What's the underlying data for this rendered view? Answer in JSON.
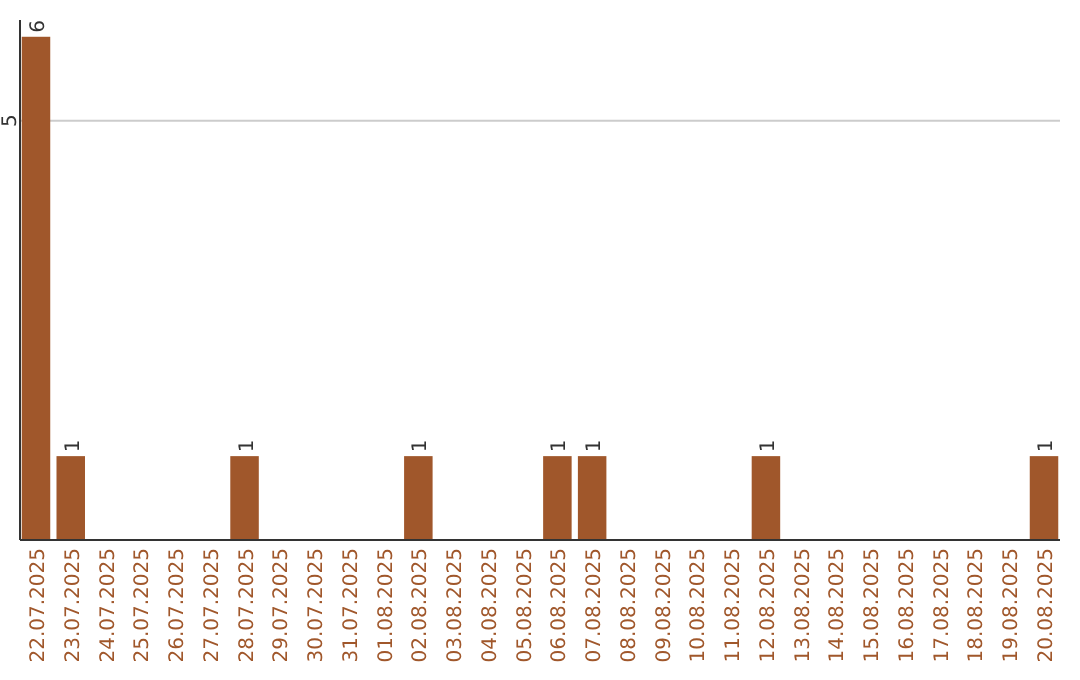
{
  "chart_data": {
    "type": "bar",
    "categories": [
      "22.07.2025",
      "23.07.2025",
      "24.07.2025",
      "25.07.2025",
      "26.07.2025",
      "27.07.2025",
      "28.07.2025",
      "29.07.2025",
      "30.07.2025",
      "31.07.2025",
      "01.08.2025",
      "02.08.2025",
      "03.08.2025",
      "04.08.2025",
      "05.08.2025",
      "06.08.2025",
      "07.08.2025",
      "08.08.2025",
      "09.08.2025",
      "10.08.2025",
      "11.08.2025",
      "12.08.2025",
      "13.08.2025",
      "14.08.2025",
      "15.08.2025",
      "16.08.2025",
      "17.08.2025",
      "18.08.2025",
      "19.08.2025",
      "20.08.2025"
    ],
    "values": [
      6,
      1,
      0,
      0,
      0,
      0,
      1,
      0,
      0,
      0,
      0,
      1,
      0,
      0,
      0,
      1,
      1,
      0,
      0,
      0,
      0,
      1,
      0,
      0,
      0,
      0,
      0,
      0,
      0,
      1
    ],
    "value_labels": [
      "6",
      "1",
      null,
      null,
      null,
      null,
      "1",
      null,
      null,
      null,
      null,
      "1",
      null,
      null,
      null,
      "1",
      "1",
      null,
      null,
      null,
      null,
      "1",
      null,
      null,
      null,
      null,
      null,
      null,
      null,
      "1"
    ],
    "color": "#a0572b",
    "ylim": [
      0,
      6.2
    ],
    "yticks": [
      5
    ],
    "grid": "y"
  }
}
